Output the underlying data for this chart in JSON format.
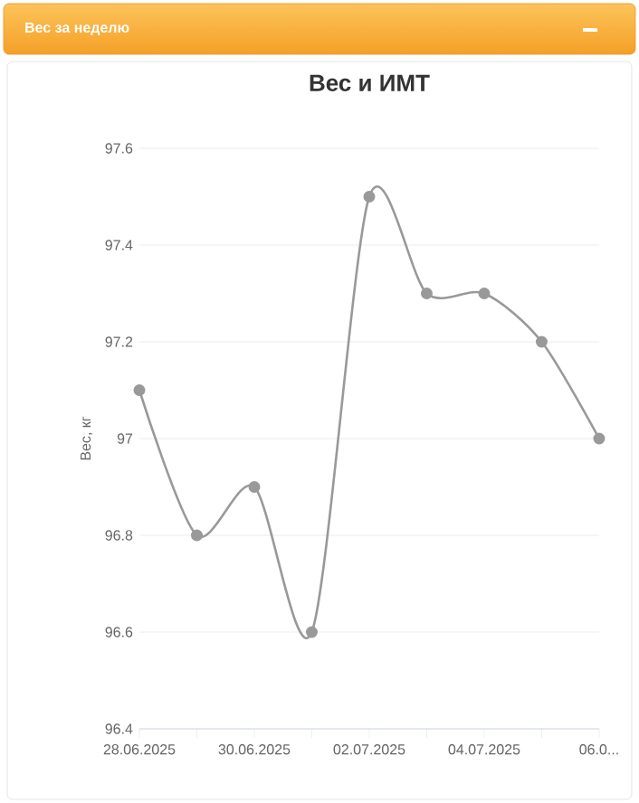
{
  "chart_data": {
    "type": "line",
    "title": "Вес и ИМТ",
    "ylabel": "Вес, кг",
    "annotations": [
      "Вес за неделю"
    ],
    "categories": [
      "28.06.2025",
      null,
      "30.06.2025",
      null,
      "02.07.2025",
      null,
      "04.07.2025",
      null,
      "06.0..."
    ],
    "series": [
      {
        "color": "#999999",
        "values": [
          97.1,
          96.8,
          96.9,
          96.6,
          97.5,
          97.3,
          97.3,
          97.2,
          97.0
        ]
      }
    ],
    "ylim": [
      96.4,
      97.6
    ],
    "yticks": [
      96.4,
      96.6,
      96.8,
      97,
      97.2,
      97.4,
      97.6
    ],
    "grid": "y",
    "marker": "circle",
    "line_style": "solid"
  }
}
